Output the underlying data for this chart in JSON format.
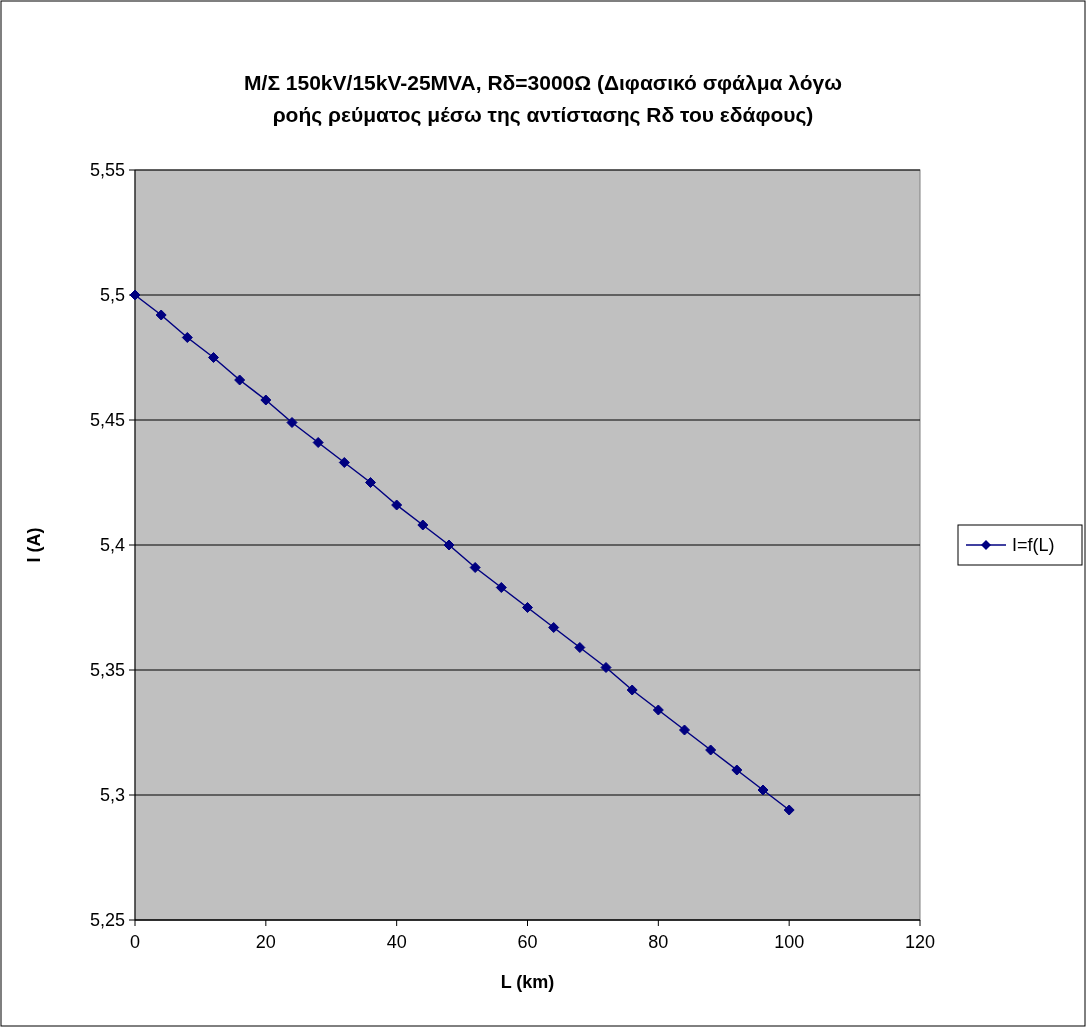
{
  "chart_data": {
    "type": "line",
    "title": "Μ/Σ 150kV/15kV-25MVA, Rδ=3000Ω (Διφασικό σφάλμα λόγω ροής ρεύματος μέσω της αντίστασης Rδ του εδάφους)",
    "xlabel": "L (km)",
    "ylabel": "I (A)",
    "x": [
      0,
      4,
      8,
      12,
      16,
      20,
      24,
      28,
      32,
      36,
      40,
      44,
      48,
      52,
      56,
      60,
      64,
      68,
      72,
      76,
      80,
      84,
      88,
      92,
      96,
      100
    ],
    "series": [
      {
        "name": "I=f(L)",
        "color": "#000080",
        "values": [
          5.5,
          5.492,
          5.483,
          5.475,
          5.466,
          5.458,
          5.449,
          5.441,
          5.433,
          5.425,
          5.416,
          5.408,
          5.4,
          5.391,
          5.383,
          5.375,
          5.367,
          5.359,
          5.351,
          5.342,
          5.334,
          5.326,
          5.318,
          5.31,
          5.302,
          5.294
        ]
      }
    ],
    "xlim": [
      0,
      120
    ],
    "xticks": [
      0,
      20,
      40,
      60,
      80,
      100,
      120
    ],
    "ylim": [
      5.25,
      5.55
    ],
    "yticks": [
      {
        "value": 5.25,
        "label": "5,25"
      },
      {
        "value": 5.3,
        "label": "5,3"
      },
      {
        "value": 5.35,
        "label": "5,35"
      },
      {
        "value": 5.4,
        "label": "5,4"
      },
      {
        "value": 5.45,
        "label": "5,45"
      },
      {
        "value": 5.5,
        "label": "5,5"
      },
      {
        "value": 5.55,
        "label": "5,55"
      }
    ],
    "grid": "y",
    "legend": "right",
    "marker": "diamond",
    "line_style": "solid"
  }
}
